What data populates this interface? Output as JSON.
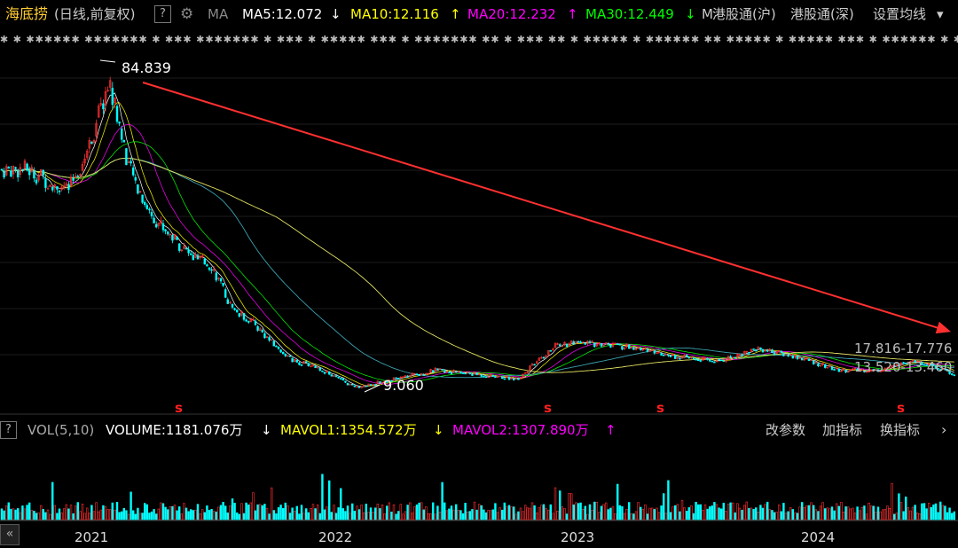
{
  "header": {
    "stock_name": "海底捞",
    "mode": "(日线,前复权)",
    "help": "?",
    "ma_label": "MA",
    "ma5": "MA5:12.072",
    "ma5_arrow": "↓",
    "ma10": "MA10:12.116",
    "ma10_arrow": "↑",
    "ma20": "MA20:12.232",
    "ma20_arrow": "↑",
    "ma30": "MA30:12.449",
    "ma30_arrow": "↓",
    "more": "M",
    "hk_sh": "港股通(沪)",
    "hk_sz": "港股通(深)",
    "settings": "设置均线",
    "settings_arrow": "▾",
    "colors": {
      "ma5": "#ffffff",
      "ma10": "#ffff00",
      "ma20": "#ff00ff",
      "ma30": "#00ff00"
    }
  },
  "news_ticker": "✱ ✱ ✱✱✱✱✱✱ ✱✱✱✱✱✱✱ ✱ ✱✱✱ ✱✱✱✱✱✱✱ ✱ ✱✱✱ ✱ ✱✱✱✱✱ ✱✱✱ ✱ ✱✱✱✱✱✱✱ ✱✱ ✱ ✱✱✱ ✱✱ ✱ ✱✱✱✱✱ ✱ ✱✱✱✱✱✱ ✱✱ ✱✱✱✱✱ ✱ ✱✱✱✱✱ ✱✱✱ ✱ ✱✱✱✱✱✱ ✱ ✱✱✱✱✱ ✱✱ ✱✱✱ ✱",
  "volume_header": {
    "help": "?",
    "vol": "VOL(5,10)",
    "volume": "VOLUME:1181.076万",
    "volume_arrow": "↓",
    "mavol1": "MAVOL1:1354.572万",
    "mavol1_arrow": "↓",
    "mavol2": "MAVOL2:1307.890万",
    "mavol2_arrow": "↑",
    "btn_params": "改参数",
    "btn_add": "加指标",
    "btn_switch": "换指标"
  },
  "nav_button": "«",
  "chart_data": {
    "type": "candlestick",
    "title": "海底捞 (日线,前复权)",
    "x_ticks": [
      "2021",
      "2022",
      "2023",
      "2024"
    ],
    "price_series_approx": [
      {
        "x": "2020-10",
        "close": 60
      },
      {
        "x": "2020-12",
        "close": 55
      },
      {
        "x": "2021-01",
        "close": 65
      },
      {
        "x": "2021-02",
        "close": 80
      },
      {
        "x": "2021-03",
        "close": 60
      },
      {
        "x": "2021-04",
        "close": 50
      },
      {
        "x": "2021-05",
        "close": 45
      },
      {
        "x": "2021-06",
        "close": 40
      },
      {
        "x": "2021-07",
        "close": 38
      },
      {
        "x": "2021-08",
        "close": 28
      },
      {
        "x": "2021-09",
        "close": 25
      },
      {
        "x": "2021-10",
        "close": 20
      },
      {
        "x": "2021-11",
        "close": 16
      },
      {
        "x": "2021-12",
        "close": 15
      },
      {
        "x": "2022-02",
        "close": 10
      },
      {
        "x": "2022-04",
        "close": 12
      },
      {
        "x": "2022-06",
        "close": 14
      },
      {
        "x": "2022-08",
        "close": 13
      },
      {
        "x": "2022-10",
        "close": 12
      },
      {
        "x": "2022-12",
        "close": 20
      },
      {
        "x": "2023-02",
        "close": 20
      },
      {
        "x": "2023-04",
        "close": 19
      },
      {
        "x": "2023-06",
        "close": 17
      },
      {
        "x": "2023-08",
        "close": 16
      },
      {
        "x": "2023-10",
        "close": 19
      },
      {
        "x": "2023-12",
        "close": 17
      },
      {
        "x": "2024-02",
        "close": 14
      },
      {
        "x": "2024-04",
        "close": 14
      },
      {
        "x": "2024-06",
        "close": 16
      },
      {
        "x": "2024-08",
        "close": 13
      },
      {
        "x": "2024-10",
        "close": 13
      }
    ],
    "annotations": {
      "high": "84.839",
      "low": "9.060",
      "range1": "17.816-17.776",
      "range2": "13.520-13.460"
    },
    "markers": [
      "s",
      "s",
      "s",
      "s"
    ],
    "trend_arrow": {
      "from_date": "2021-02",
      "from_price": 84.8,
      "to_date": "2024-11",
      "to_price": 17.5
    },
    "ylim": [
      9,
      85
    ],
    "grid": true,
    "colors": {
      "up": "#ff3030",
      "down": "#00ffff",
      "ma60": "#e0e060",
      "ma120": "#3aa0b0",
      "arrow": "#ff3030"
    }
  }
}
